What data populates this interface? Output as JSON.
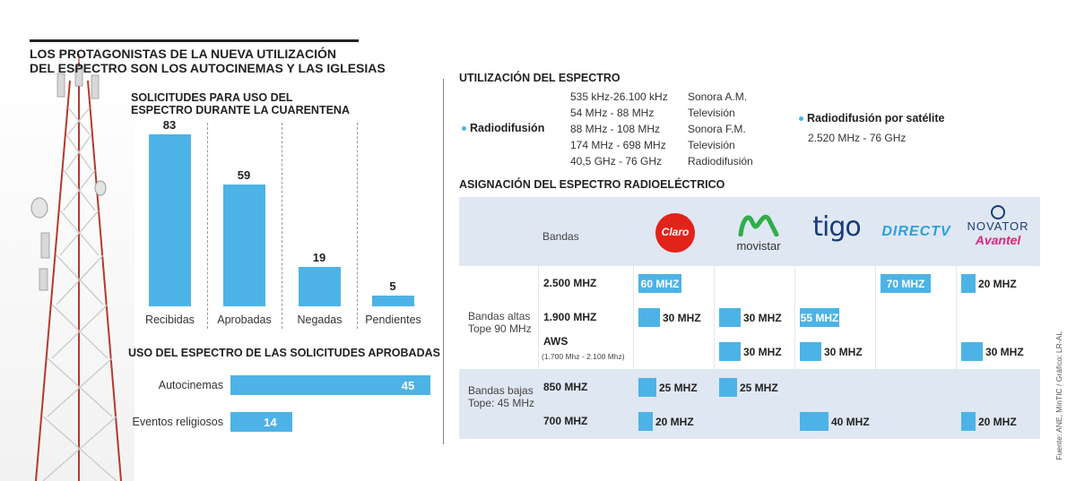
{
  "title_line1": "LOS PROTAGONISTAS DE LA NUEVA UTILIZACIÓN",
  "title_line2": "DEL ESPECTRO SON LOS AUTOCINEMAS Y LAS IGLESIAS",
  "solicitudes": {
    "title_line1": "SOLICITUDES PARA USO DEL",
    "title_line2": "ESPECTRO DURANTE LA CUARENTENA"
  },
  "uso": {
    "title": "USO DEL ESPECTRO DE LAS SOLICITUDES APROBADAS"
  },
  "utilizacion": {
    "title": "UTILIZACIÓN DEL ESPECTRO",
    "radiodifusion_label": "Radiodifusión",
    "rows": [
      {
        "freq": "535 kHz-26.100 kHz",
        "use": "Sonora A.M."
      },
      {
        "freq": "54 MHz - 88 MHz",
        "use": "Televisión"
      },
      {
        "freq": "88 MHz - 108 MHz",
        "use": "Sonora F.M."
      },
      {
        "freq": "174 MHz - 698 MHz",
        "use": "Televisión"
      },
      {
        "freq": "40,5 GHz - 76 GHz",
        "use": "Radiodifusión"
      }
    ],
    "satelite_label": "Radiodifusión por satélite",
    "satelite_freq": "2.520 MHz - 76 GHz"
  },
  "asignacion": {
    "title": "ASIGNACIÓN DEL ESPECTRO RADIOELÉCTRICO",
    "bandas_header": "Bandas",
    "group_altas": "Bandas altas Tope 90 MHz",
    "group_bajas": "Bandas bajas Tope: 45 MHz",
    "aws_sub": "(1.700 Mhz - 2.100 Mhz)",
    "operators": [
      "Claro",
      "movistar",
      "tigo",
      "DIRECTV",
      "NOVATOR",
      "Avantel"
    ]
  },
  "source": "Fuente: ANE, MinTIC / Gráfico: LR-AL",
  "colors": {
    "bar": "#4db3e6",
    "grid": "#dfe7f2"
  },
  "chart_data": [
    {
      "type": "bar",
      "title": "SOLICITUDES PARA USO DEL ESPECTRO DURANTE LA CUARENTENA",
      "categories": [
        "Recibidas",
        "Aprobadas",
        "Negadas",
        "Pendientes"
      ],
      "values": [
        83,
        59,
        19,
        5
      ]
    },
    {
      "type": "bar",
      "orientation": "horizontal",
      "title": "USO DEL ESPECTRO DE LAS SOLICITUDES APROBADAS",
      "categories": [
        "Autocinemas",
        "Eventos religiosos"
      ],
      "values": [
        45,
        14
      ]
    },
    {
      "type": "table",
      "title": "ASIGNACIÓN DEL ESPECTRO RADIOELÉCTRICO",
      "columns": [
        "Claro",
        "movistar",
        "tigo",
        "DIRECTV",
        "NOVATOR Avantel"
      ],
      "max_mhz": 90,
      "rows": [
        {
          "band": "2.500 MHZ",
          "cells": [
            60,
            null,
            null,
            70,
            20
          ],
          "labels": [
            "60 MHZ",
            "",
            "",
            "70 MHZ",
            "20 MHZ"
          ]
        },
        {
          "band": "1.900 MHZ",
          "cells": [
            30,
            30,
            55,
            null,
            null
          ],
          "labels": [
            "30 MHZ",
            "30 MHZ",
            "55 MHZ",
            "",
            ""
          ]
        },
        {
          "band": "AWS",
          "cells": [
            null,
            30,
            30,
            null,
            30
          ],
          "labels": [
            "",
            "30 MHZ",
            "30 MHZ",
            "",
            "30 MHZ"
          ]
        },
        {
          "band": "850 MHZ",
          "cells": [
            25,
            25,
            null,
            null,
            null
          ],
          "labels": [
            "25 MHZ",
            "25 MHZ",
            "",
            "",
            ""
          ]
        },
        {
          "band": "700 MHZ",
          "cells": [
            20,
            null,
            40,
            null,
            20
          ],
          "labels": [
            "20 MHZ",
            "",
            "40 MHZ",
            "",
            "20 MHZ"
          ]
        }
      ]
    }
  ]
}
